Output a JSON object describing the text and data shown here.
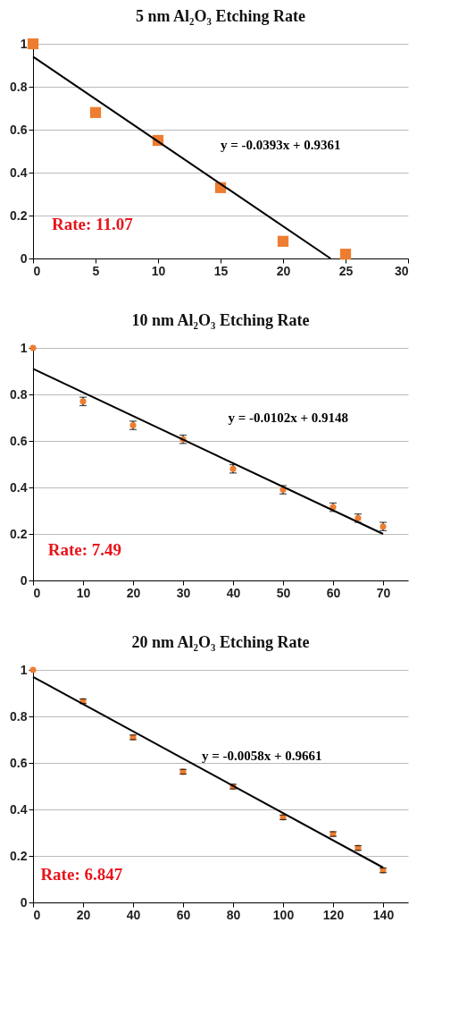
{
  "chart_data": [
    {
      "type": "scatter",
      "title": "5 nm Al₂O₃ Etching Rate",
      "marker": "square",
      "grid": "y",
      "xlim": [
        0,
        30
      ],
      "xticks": [
        0,
        5,
        10,
        15,
        20,
        25,
        30
      ],
      "ylim": [
        0,
        1
      ],
      "yticks": [
        0,
        0.2,
        0.4,
        0.6,
        0.8,
        1
      ],
      "series": [
        {
          "color": "#ed7d31",
          "x": [
            0,
            5,
            10,
            15,
            20,
            25
          ],
          "values": [
            1,
            0.68,
            0.55,
            0.33,
            0.08,
            0.02
          ]
        },
        {
          "type": "line",
          "marker": "none",
          "color": "#000000",
          "x": [
            0,
            23.8
          ],
          "values": [
            0.94,
            0
          ]
        }
      ],
      "annotations": [
        "y = -0.0393x + 0.9361",
        "Rate: 11.07"
      ]
    },
    {
      "type": "scatter",
      "title": "10 nm Al₂O₃ Etching Rate",
      "marker": "circle",
      "grid": "y",
      "xlim": [
        0,
        75
      ],
      "xticks": [
        0,
        10,
        20,
        30,
        40,
        50,
        60,
        70
      ],
      "ylim": [
        0,
        1
      ],
      "yticks": [
        0,
        0.2,
        0.4,
        0.6,
        0.8,
        1
      ],
      "series": [
        {
          "color": "#ed7d31",
          "x": [
            0,
            10,
            20,
            30,
            40,
            50,
            60,
            65,
            70
          ],
          "values": [
            1,
            0.77,
            0.667,
            0.607,
            0.48,
            0.39,
            0.315,
            0.268,
            0.232
          ],
          "errors": [
            null,
            0.018,
            0.018,
            0.018,
            0.018,
            0.018,
            0.018,
            0.018,
            0.018
          ]
        },
        {
          "type": "line",
          "marker": "none",
          "color": "#000000",
          "x": [
            0,
            70
          ],
          "values": [
            0.91,
            0.2
          ]
        }
      ],
      "annotations": [
        "y = -0.0102x + 0.9148",
        "Rate: 7.49"
      ]
    },
    {
      "type": "scatter",
      "title": "20 nm Al₂O₃ Etching Rate",
      "marker": "circle",
      "grid": "y",
      "xlim": [
        0,
        150
      ],
      "xticks": [
        0,
        20,
        40,
        60,
        80,
        100,
        120,
        140
      ],
      "ylim": [
        0,
        1
      ],
      "yticks": [
        0,
        0.2,
        0.4,
        0.6,
        0.8,
        1
      ],
      "series": [
        {
          "color": "#ed7d31",
          "x": [
            0,
            20,
            40,
            60,
            80,
            100,
            120,
            130,
            140
          ],
          "values": [
            1,
            0.865,
            0.71,
            0.562,
            0.498,
            0.366,
            0.294,
            0.234,
            0.138
          ],
          "errors": [
            null,
            0.01,
            0.01,
            0.01,
            0.01,
            0.01,
            0.01,
            0.01,
            0.01
          ]
        },
        {
          "type": "line",
          "marker": "none",
          "color": "#000000",
          "x": [
            0,
            140
          ],
          "values": [
            0.97,
            0.15
          ]
        }
      ],
      "annotations": [
        "y = -0.0058x + 0.9661",
        "Rate: 6.847"
      ]
    }
  ]
}
